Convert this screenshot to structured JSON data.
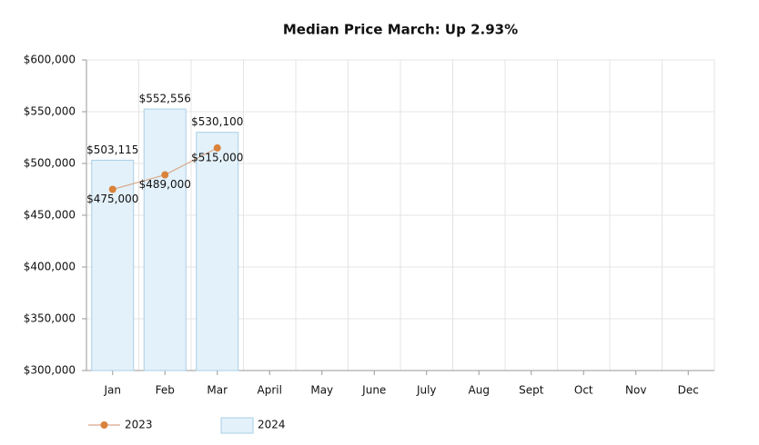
{
  "chart_data": {
    "type": "bar",
    "title": "Median Price March: Up 2.93%",
    "categories": [
      "Jan",
      "Feb",
      "Mar",
      "April",
      "May",
      "June",
      "July",
      "Aug",
      "Sept",
      "Oct",
      "Nov",
      "Dec"
    ],
    "series": [
      {
        "name": "2023",
        "type": "line",
        "color": "#d9823b",
        "linecolor": "#d9a88a",
        "values": [
          475000,
          489000,
          515000,
          null,
          null,
          null,
          null,
          null,
          null,
          null,
          null,
          null
        ],
        "value_labels": [
          "$475,000",
          "$489,000",
          "$515,000",
          null,
          null,
          null,
          null,
          null,
          null,
          null,
          null,
          null
        ]
      },
      {
        "name": "2024",
        "type": "bar",
        "color": "#e3f1fa",
        "edgecolor": "#a9cfe6",
        "values": [
          503115,
          552556,
          530100,
          null,
          null,
          null,
          null,
          null,
          null,
          null,
          null,
          null
        ],
        "value_labels": [
          "$503,115",
          "$552,556",
          "$530,100",
          null,
          null,
          null,
          null,
          null,
          null,
          null,
          null,
          null
        ]
      }
    ],
    "ylim": [
      300000,
      600000
    ],
    "yticks": [
      {
        "value": 300000,
        "label": "$300,000"
      },
      {
        "value": 350000,
        "label": "$350,000"
      },
      {
        "value": 400000,
        "label": "$400,000"
      },
      {
        "value": 450000,
        "label": "$450,000"
      },
      {
        "value": 500000,
        "label": "$500,000"
      },
      {
        "value": 550000,
        "label": "$550,000"
      },
      {
        "value": 600000,
        "label": "$600,000"
      }
    ],
    "grid": true,
    "legend": "bottom-left"
  }
}
